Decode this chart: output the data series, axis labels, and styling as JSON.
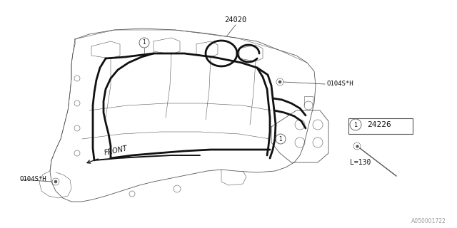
{
  "bg_color": "#ffffff",
  "line_color": "#555555",
  "wire_color": "#111111",
  "label_color": "#111111",
  "fig_width": 6.4,
  "fig_height": 3.2,
  "dpi": 100,
  "watermark": "A050001722",
  "part_label_24020": "24020",
  "part_label_24226": "24226",
  "bolt_label": "O104S*H",
  "bolt_label2": "O104S*H",
  "length_label": "L=130",
  "front_label": "FRONT",
  "lw_body": 0.6,
  "lw_wire": 2.0,
  "lw_thin": 0.4
}
